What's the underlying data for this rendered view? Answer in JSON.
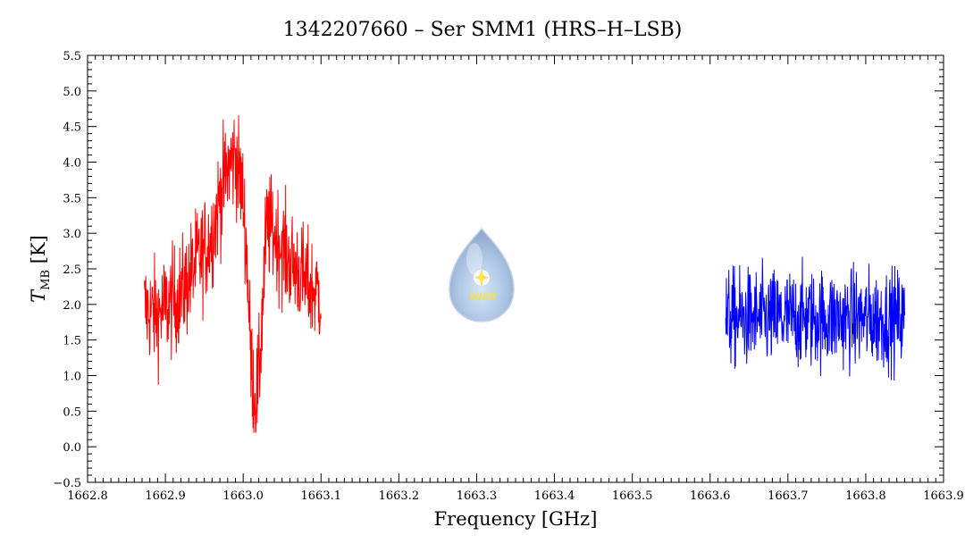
{
  "chart_data": {
    "type": "line",
    "title": "1342207660 – Ser SMM1 (HRS–H–LSB)",
    "xlabel": "Frequency [GHz]",
    "ylabel_main": "T",
    "ylabel_sub": "MB",
    "ylabel_unit": " [K]",
    "xlim": [
      1662.8,
      1663.9
    ],
    "ylim": [
      -0.5,
      5.5
    ],
    "x_ticks": [
      "1662.8",
      "1662.9",
      "1663.0",
      "1663.1",
      "1663.2",
      "1663.3",
      "1663.4",
      "1663.5",
      "1663.6",
      "1663.7",
      "1663.8",
      "1663.9"
    ],
    "y_ticks": [
      "−0.5",
      "0.0",
      "0.5",
      "1.0",
      "1.5",
      "2.0",
      "2.5",
      "3.0",
      "3.5",
      "4.0",
      "4.5",
      "5.0",
      "5.5"
    ],
    "grid": false,
    "logo_text": "WISH",
    "series": [
      {
        "color": "#ff0000",
        "x": [
          1662.873,
          1662.88,
          1662.89,
          1662.9,
          1662.91,
          1662.92,
          1662.93,
          1662.94,
          1662.95,
          1662.96,
          1662.97,
          1662.98,
          1662.99,
          1663.0,
          1663.005,
          1663.01,
          1663.015,
          1663.02,
          1663.025,
          1663.03,
          1663.04,
          1663.05,
          1663.06,
          1663.07,
          1663.08,
          1663.09,
          1663.1
        ],
        "y": [
          1.95,
          1.9,
          1.85,
          1.95,
          2.05,
          2.15,
          2.35,
          2.6,
          2.75,
          3.0,
          3.5,
          3.9,
          4.1,
          3.5,
          2.6,
          1.2,
          0.7,
          0.9,
          2.0,
          3.1,
          3.0,
          2.8,
          2.6,
          2.5,
          2.3,
          2.2,
          2.15
        ],
        "noise_amplitude": 0.38
      },
      {
        "color": "#0000ff",
        "x": [
          1663.62,
          1663.85
        ],
        "y": [
          1.8,
          1.8
        ],
        "noise_amplitude": 0.35
      }
    ]
  }
}
